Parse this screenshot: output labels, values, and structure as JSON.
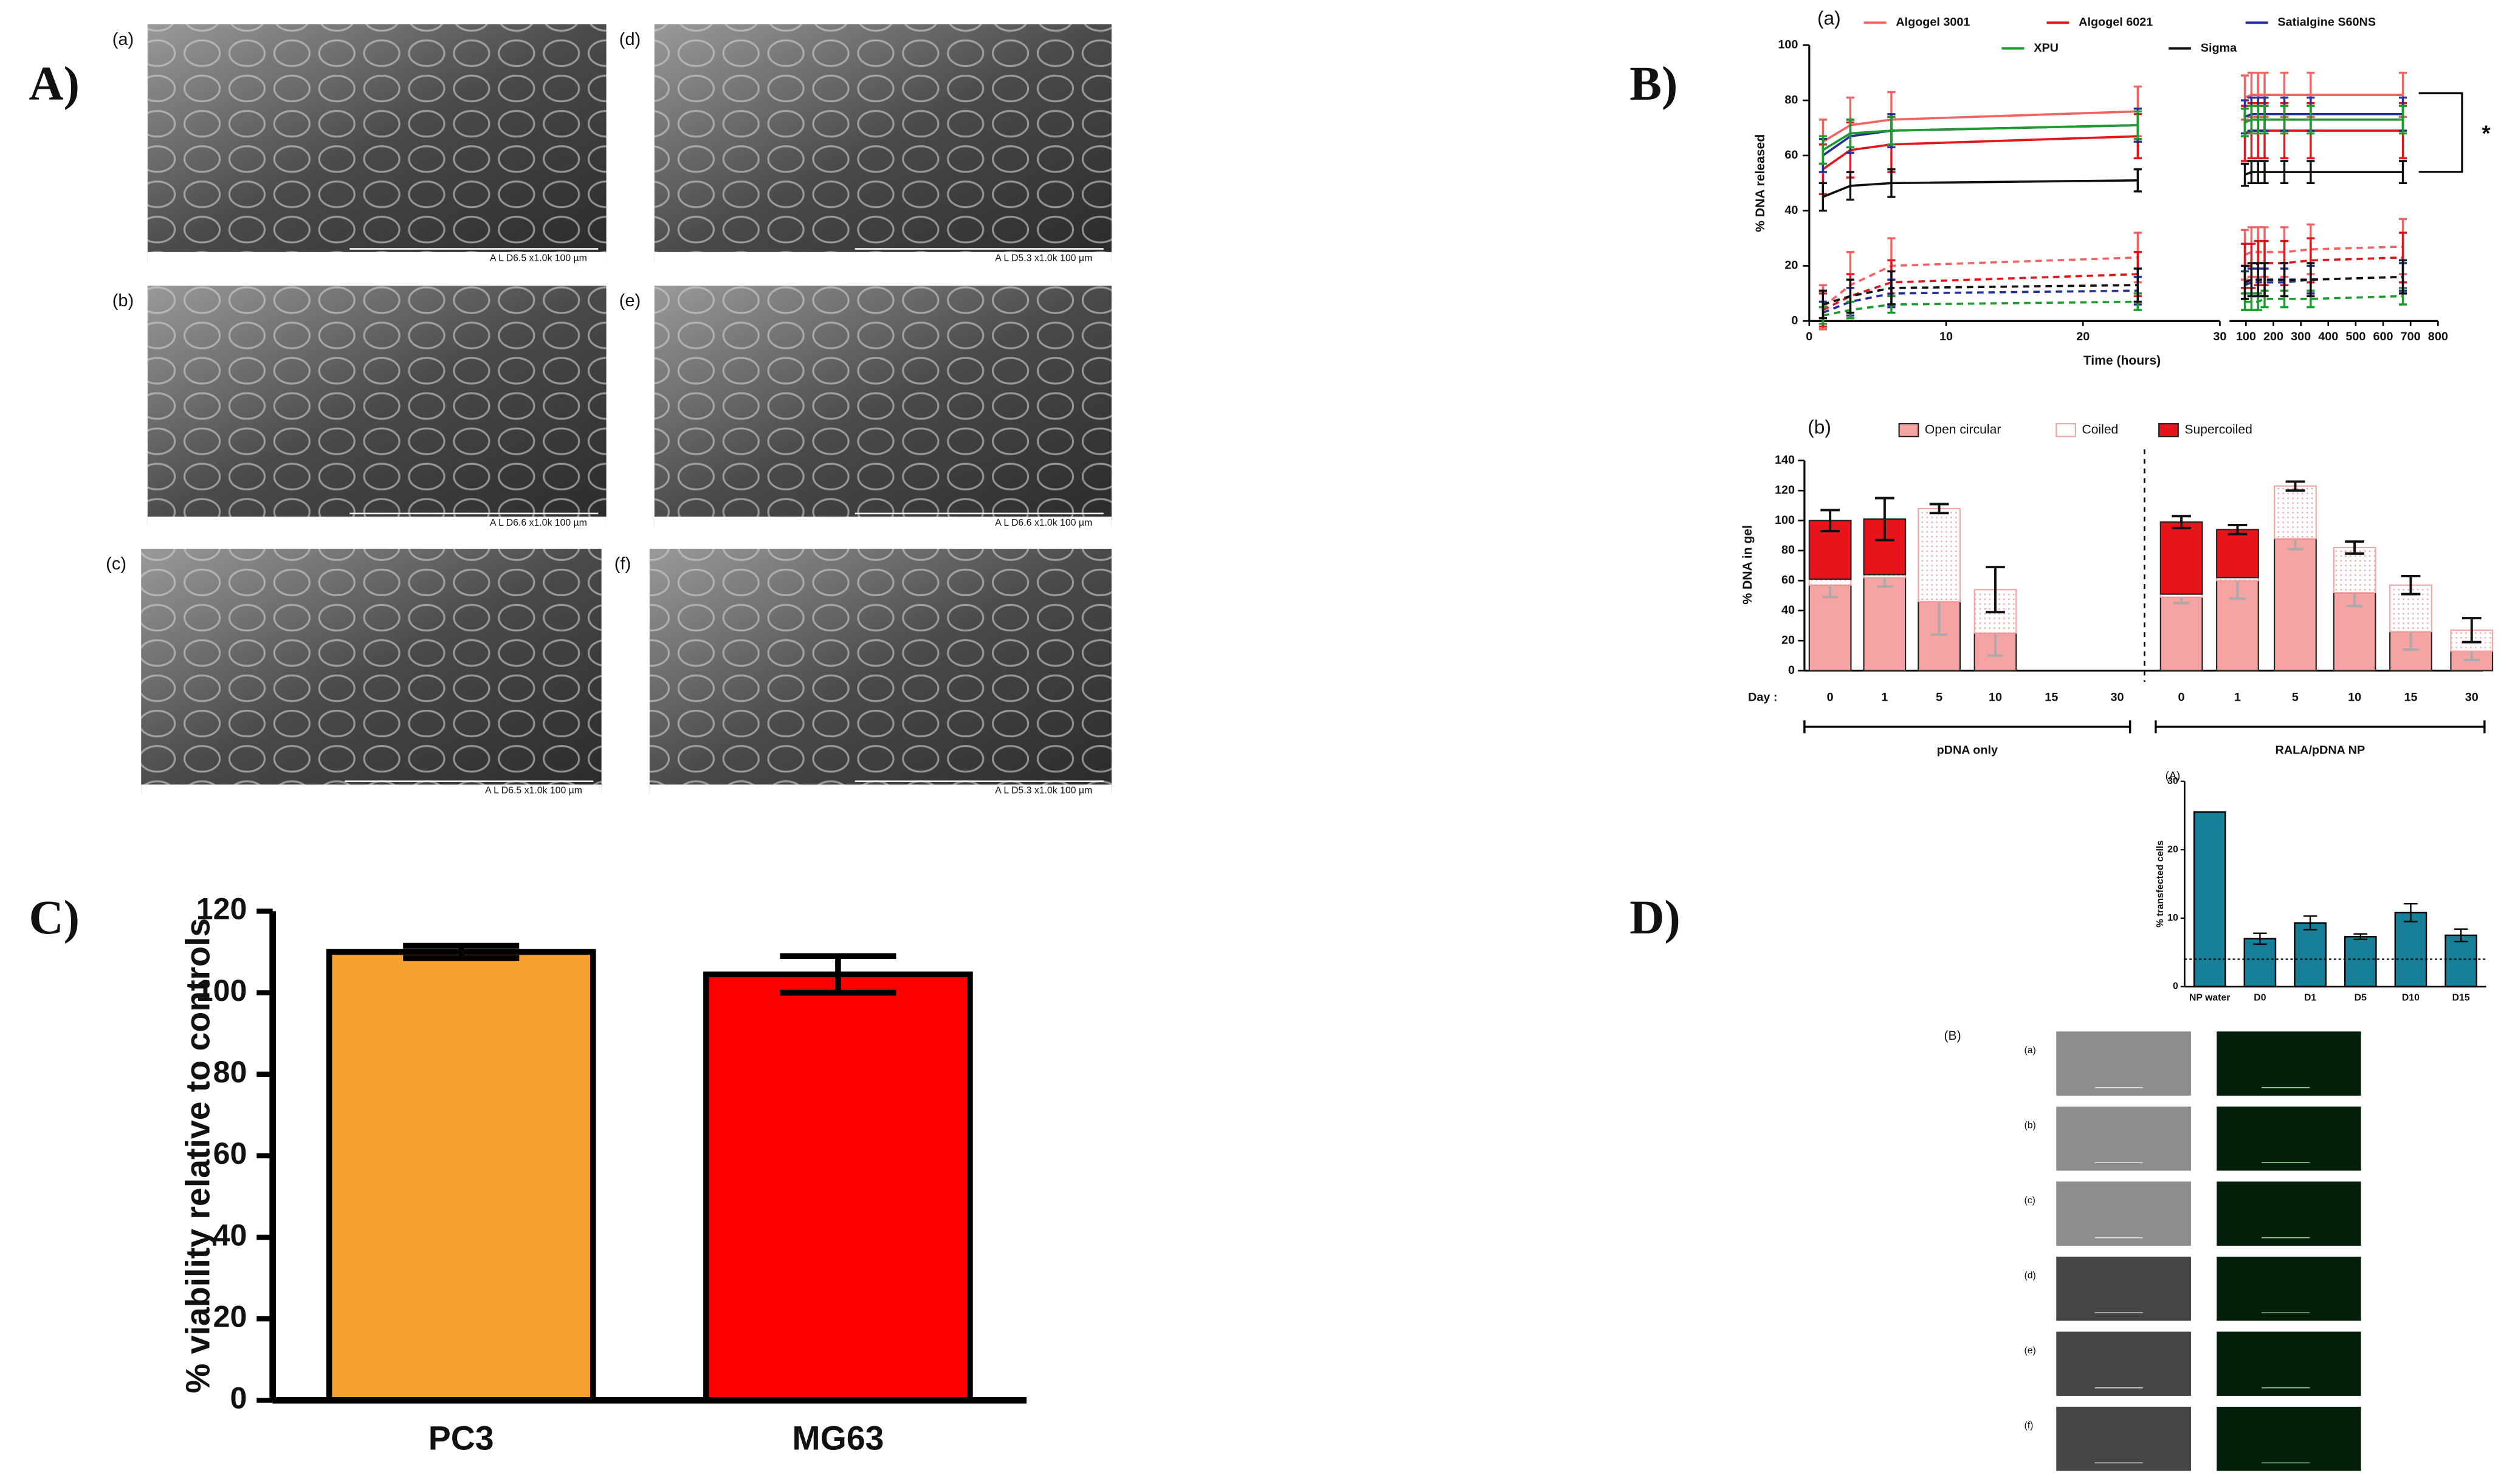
{
  "panel_labels": [
    "A)",
    "B)",
    "C)",
    "D)"
  ],
  "sem_images": [
    {
      "label": "(a)",
      "caption": "A L   D6.5   x1.0k   100 µm"
    },
    {
      "label": "(b)",
      "caption": "A L   D6.6   x1.0k   100 µm"
    },
    {
      "label": "(c)",
      "caption": "A L   D6.5   x1.0k   100 µm"
    },
    {
      "label": "(d)",
      "caption": "A L   D5.3   x1.0k   100 µm"
    },
    {
      "label": "(e)",
      "caption": "A L   D6.6   x1.0k   100 µm"
    },
    {
      "label": "(f)",
      "caption": "A L   D5.3   x1.0k   100 µm"
    }
  ],
  "microscopy": {
    "label": "(B)",
    "rows": [
      "(a)",
      "(b)",
      "(c)",
      "(d)",
      "(e)",
      "(f)"
    ]
  },
  "chart_data": [
    {
      "type": "line",
      "title": "(a)",
      "x_label": "Time (hours)",
      "y_label": "% DNA released",
      "x": [
        1,
        3,
        6,
        24,
        96,
        120,
        144,
        168,
        240,
        336,
        672
      ],
      "xlim": [
        0,
        800
      ],
      "x_segments": [
        [
          0,
          30
        ],
        [
          40,
          800
        ]
      ],
      "xticks": [
        0,
        10,
        20,
        30,
        100,
        200,
        300,
        400,
        500,
        600,
        700,
        800
      ],
      "ylim": [
        0,
        100
      ],
      "yticks": [
        0,
        20,
        40,
        60,
        80,
        100
      ],
      "annotation": "*",
      "series": [
        {
          "name": "Algogel 3001",
          "color": "#f26464",
          "values": [
            65,
            71,
            73,
            76,
            81,
            82,
            82,
            82,
            82,
            82,
            82
          ],
          "errors": [
            8,
            10,
            10,
            9,
            8,
            8,
            8,
            8,
            8,
            8,
            8
          ],
          "dashed_values": [
            5,
            13,
            20,
            23,
            24,
            25,
            25,
            25,
            25,
            26,
            27
          ],
          "dashed_errors": [
            8,
            12,
            10,
            9,
            9,
            9,
            9,
            9,
            9,
            9,
            10
          ]
        },
        {
          "name": "Algogel 6021",
          "color": "#e3161c",
          "values": [
            55,
            62,
            64,
            67,
            68,
            69,
            69,
            69,
            69,
            69,
            69
          ],
          "errors": [
            9,
            10,
            10,
            8,
            10,
            10,
            10,
            10,
            10,
            10,
            10
          ],
          "dashed_values": [
            4,
            9,
            14,
            17,
            20,
            20,
            21,
            21,
            21,
            22,
            23
          ],
          "dashed_errors": [
            6,
            8,
            8,
            8,
            8,
            8,
            8,
            8,
            8,
            8,
            9
          ]
        },
        {
          "name": "Satialgine S60NS",
          "color": "#25319b",
          "values": [
            60,
            67,
            69,
            71,
            74,
            75,
            75,
            75,
            75,
            75,
            75
          ],
          "errors": [
            6,
            6,
            6,
            6,
            6,
            6,
            6,
            6,
            6,
            6,
            6
          ],
          "dashed_values": [
            3,
            7,
            10,
            11,
            13,
            14,
            14,
            14,
            14,
            15,
            16
          ],
          "dashed_errors": [
            4,
            5,
            5,
            5,
            5,
            5,
            5,
            5,
            5,
            5,
            5
          ]
        },
        {
          "name": "XPU",
          "color": "#1e9b2e",
          "values": [
            62,
            68,
            69,
            71,
            72,
            73,
            73,
            73,
            73,
            73,
            73
          ],
          "errors": [
            5,
            5,
            5,
            5,
            5,
            5,
            5,
            5,
            5,
            5,
            5
          ],
          "dashed_values": [
            2,
            4,
            6,
            7,
            7,
            7,
            7,
            8,
            8,
            8,
            9
          ],
          "dashed_errors": [
            3,
            3,
            3,
            3,
            3,
            3,
            3,
            3,
            3,
            3,
            3
          ]
        },
        {
          "name": "Sigma",
          "color": "#111111",
          "values": [
            45,
            49,
            50,
            51,
            53,
            54,
            54,
            54,
            54,
            54,
            54
          ],
          "errors": [
            5,
            5,
            5,
            4,
            4,
            4,
            4,
            4,
            4,
            4,
            4
          ],
          "dashed_values": [
            6,
            9,
            12,
            13,
            14,
            15,
            15,
            15,
            15,
            15,
            16
          ],
          "dashed_errors": [
            5,
            6,
            6,
            6,
            6,
            6,
            6,
            6,
            6,
            6,
            6
          ]
        }
      ]
    },
    {
      "type": "stacked_bar",
      "title": "(b)",
      "y_label": "% DNA in gel",
      "x_prefix": "Day :",
      "groups": [
        {
          "name": "pDNA only",
          "categories": [
            "0",
            "1",
            "5",
            "10",
            "15",
            "30"
          ]
        },
        {
          "name": "RALA/pDNA NP",
          "categories": [
            "0",
            "1",
            "5",
            "10",
            "15",
            "30"
          ]
        }
      ],
      "ylim": [
        0,
        140
      ],
      "yticks": [
        0,
        20,
        40,
        60,
        80,
        100,
        120,
        140
      ],
      "series": [
        {
          "name": "Open circular",
          "color": "#f5a3a3",
          "values": [
            57,
            62,
            46,
            25,
            0,
            0,
            49,
            60,
            88,
            52,
            26,
            13
          ],
          "errors": [
            8,
            6,
            22,
            15,
            null,
            null,
            4,
            12,
            7,
            9,
            12,
            6
          ]
        },
        {
          "name": "Coiled",
          "color": "#f5a3a3",
          "hollow": true,
          "values": [
            4,
            2,
            62,
            29,
            0,
            0,
            2,
            2,
            35,
            30,
            31,
            14
          ]
        },
        {
          "name": "Supercoiled",
          "color": "#e8141c",
          "values": [
            39,
            37,
            0,
            0,
            0,
            0,
            48,
            32,
            0,
            0,
            0,
            0
          ]
        }
      ],
      "total_errors": [
        7,
        14,
        3,
        15,
        null,
        null,
        4,
        3,
        3,
        4,
        6,
        8
      ]
    },
    {
      "type": "bar",
      "y_label": "% viability relative to controls",
      "categories": [
        "PC3",
        "MG63"
      ],
      "values": [
        110,
        104.5
      ],
      "errors": [
        1.5,
        4.5
      ],
      "colors": [
        "#f7a133",
        "#ff0000"
      ],
      "ylim": [
        0,
        120
      ],
      "yticks": [
        0,
        20,
        40,
        60,
        80,
        100,
        120
      ]
    },
    {
      "type": "bar",
      "title": "(A)",
      "y_label": "% transfected cells",
      "categories": [
        "NP water",
        "D0",
        "D1",
        "D5",
        "D10",
        "D15"
      ],
      "values": [
        25.5,
        7,
        9.3,
        7.3,
        10.8,
        7.5
      ],
      "errors": [
        null,
        0.8,
        1,
        0.4,
        1.3,
        0.9
      ],
      "color": "#177e97",
      "ylim": [
        0,
        30
      ],
      "yticks": [
        0,
        10,
        20,
        30
      ],
      "reference_line": 4
    }
  ]
}
